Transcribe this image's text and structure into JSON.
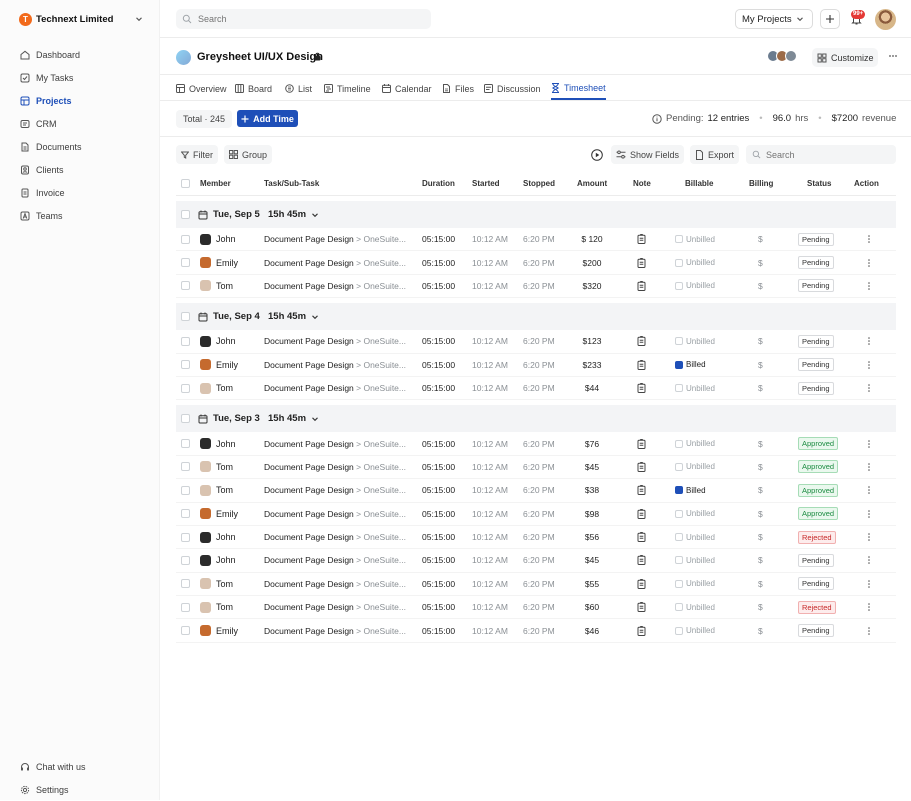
{
  "org": {
    "initial": "T",
    "name": "Technext Limited"
  },
  "sidebar": {
    "items": [
      {
        "label": "Dashboard",
        "icon": "grid-icon",
        "active": false
      },
      {
        "label": "My Tasks",
        "icon": "tasks-icon",
        "active": false
      },
      {
        "label": "Projects",
        "icon": "folder-icon",
        "active": true
      },
      {
        "label": "CRM",
        "icon": "crm-icon",
        "active": false
      },
      {
        "label": "Documents",
        "icon": "document-icon",
        "active": false
      },
      {
        "label": "Clients",
        "icon": "client-icon",
        "active": false
      },
      {
        "label": "Invoice",
        "icon": "invoice-icon",
        "active": false
      },
      {
        "label": "Teams",
        "icon": "team-icon",
        "active": false
      }
    ],
    "bottom": [
      {
        "label": "Chat with us",
        "icon": "headset-icon"
      },
      {
        "label": "Settings",
        "icon": "gear-icon"
      }
    ]
  },
  "topbar": {
    "search_placeholder": "Search",
    "project_select": "My Projects",
    "notif_count": "99+"
  },
  "project": {
    "title": "Greysheet UI/UX Design",
    "customize_label": "Customize"
  },
  "tabs": [
    {
      "label": "Overview",
      "icon": "overview-icon"
    },
    {
      "label": "Board",
      "icon": "board-icon"
    },
    {
      "label": "List",
      "icon": "list-icon"
    },
    {
      "label": "Timeline",
      "icon": "timeline-icon"
    },
    {
      "label": "Calendar",
      "icon": "calendar-icon"
    },
    {
      "label": "Files",
      "icon": "files-icon"
    },
    {
      "label": "Discussion",
      "icon": "discussion-icon"
    },
    {
      "label": "Timesheet",
      "icon": "hourglass-icon",
      "active": true
    }
  ],
  "timesheet": {
    "total_label": "Total · 245",
    "add_time_label": "Add Time",
    "pending_label": "Pending:",
    "pending_entries": "12 entries",
    "hours_value": "96.0",
    "hours_unit": "hrs",
    "revenue_value": "$7200",
    "revenue_unit": "revenue"
  },
  "toolbar": {
    "filter": "Filter",
    "group": "Group",
    "show_fields": "Show Fields",
    "export": "Export",
    "search_placeholder": "Search"
  },
  "columns": {
    "member": "Member",
    "task": "Task/Sub-Task",
    "duration": "Duration",
    "started": "Started",
    "stopped": "Stopped",
    "amount": "Amount",
    "note": "Note",
    "billable": "Billable",
    "billing": "Billing",
    "status": "Status",
    "action": "Action"
  },
  "colors": {
    "accent": "#1e4fb8",
    "approved": "#1c8b41",
    "rejected": "#c62828"
  },
  "groups": [
    {
      "date": "Tue, Sep 5",
      "total": "15h 45m",
      "rows": [
        {
          "member": "John",
          "task": "Document Page Design",
          "sub": "OneSuite...",
          "duration": "05:15:00",
          "started": "10:12 AM",
          "stopped": "6:20 PM",
          "amount": "$ 120",
          "billable": "Unbilled",
          "billed": false,
          "billing": "$",
          "status": "Pending"
        },
        {
          "member": "Emily",
          "task": "Document Page Design",
          "sub": "OneSuite...",
          "duration": "05:15:00",
          "started": "10:12 AM",
          "stopped": "6:20 PM",
          "amount": "$200",
          "billable": "Unbilled",
          "billed": false,
          "billing": "$",
          "status": "Pending"
        },
        {
          "member": "Tom",
          "task": "Document Page Design",
          "sub": "OneSuite...",
          "duration": "05:15:00",
          "started": "10:12 AM",
          "stopped": "6:20 PM",
          "amount": "$320",
          "billable": "Unbilled",
          "billed": false,
          "billing": "$",
          "status": "Pending"
        }
      ]
    },
    {
      "date": "Tue, Sep 4",
      "total": "15h 45m",
      "rows": [
        {
          "member": "John",
          "task": "Document Page Design",
          "sub": "OneSuite...",
          "duration": "05:15:00",
          "started": "10:12 AM",
          "stopped": "6:20 PM",
          "amount": "$123",
          "billable": "Unbilled",
          "billed": false,
          "billing": "$",
          "status": "Pending"
        },
        {
          "member": "Emily",
          "task": "Document Page Design",
          "sub": "OneSuite...",
          "duration": "05:15:00",
          "started": "10:12 AM",
          "stopped": "6:20 PM",
          "amount": "$233",
          "billable": "Billed",
          "billed": true,
          "billing": "$",
          "status": "Pending"
        },
        {
          "member": "Tom",
          "task": "Document Page Design",
          "sub": "OneSuite...",
          "duration": "05:15:00",
          "started": "10:12 AM",
          "stopped": "6:20 PM",
          "amount": "$44",
          "billable": "Unbilled",
          "billed": false,
          "billing": "$",
          "status": "Pending"
        }
      ]
    },
    {
      "date": "Tue, Sep 3",
      "total": "15h 45m",
      "rows": [
        {
          "member": "John",
          "task": "Document Page Design",
          "sub": "OneSuite...",
          "duration": "05:15:00",
          "started": "10:12 AM",
          "stopped": "6:20 PM",
          "amount": "$76",
          "billable": "Unbilled",
          "billed": false,
          "billing": "$",
          "status": "Approved"
        },
        {
          "member": "Tom",
          "task": "Document Page Design",
          "sub": "OneSuite...",
          "duration": "05:15:00",
          "started": "10:12 AM",
          "stopped": "6:20 PM",
          "amount": "$45",
          "billable": "Unbilled",
          "billed": false,
          "billing": "$",
          "status": "Approved"
        },
        {
          "member": "Tom",
          "task": "Document Page Design",
          "sub": "OneSuite...",
          "duration": "05:15:00",
          "started": "10:12 AM",
          "stopped": "6:20 PM",
          "amount": "$38",
          "billable": "Billed",
          "billed": true,
          "billing": "$",
          "status": "Approved"
        },
        {
          "member": "Emily",
          "task": "Document Page Design",
          "sub": "OneSuite...",
          "duration": "05:15:00",
          "started": "10:12 AM",
          "stopped": "6:20 PM",
          "amount": "$98",
          "billable": "Unbilled",
          "billed": false,
          "billing": "$",
          "status": "Approved"
        },
        {
          "member": "John",
          "task": "Document Page Design",
          "sub": "OneSuite...",
          "duration": "05:15:00",
          "started": "10:12 AM",
          "stopped": "6:20 PM",
          "amount": "$56",
          "billable": "Unbilled",
          "billed": false,
          "billing": "$",
          "status": "Rejected"
        },
        {
          "member": "John",
          "task": "Document Page Design",
          "sub": "OneSuite...",
          "duration": "05:15:00",
          "started": "10:12 AM",
          "stopped": "6:20 PM",
          "amount": "$45",
          "billable": "Unbilled",
          "billed": false,
          "billing": "$",
          "status": "Pending"
        },
        {
          "member": "Tom",
          "task": "Document Page Design",
          "sub": "OneSuite...",
          "duration": "05:15:00",
          "started": "10:12 AM",
          "stopped": "6:20 PM",
          "amount": "$55",
          "billable": "Unbilled",
          "billed": false,
          "billing": "$",
          "status": "Pending"
        },
        {
          "member": "Tom",
          "task": "Document Page Design",
          "sub": "OneSuite...",
          "duration": "05:15:00",
          "started": "10:12 AM",
          "stopped": "6:20 PM",
          "amount": "$60",
          "billable": "Unbilled",
          "billed": false,
          "billing": "$",
          "status": "Rejected"
        },
        {
          "member": "Emily",
          "task": "Document Page Design",
          "sub": "OneSuite...",
          "duration": "05:15:00",
          "started": "10:12 AM",
          "stopped": "6:20 PM",
          "amount": "$46",
          "billable": "Unbilled",
          "billed": false,
          "billing": "$",
          "status": "Pending"
        }
      ]
    }
  ]
}
